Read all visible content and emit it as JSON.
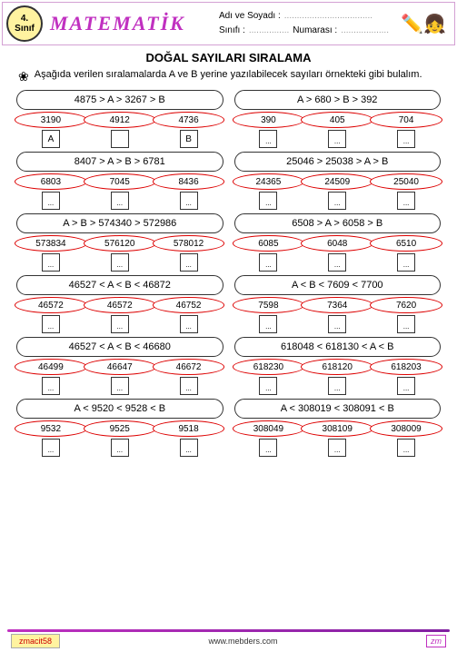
{
  "header": {
    "grade_num": "4.",
    "grade_label": "Sınıf",
    "subject": "MATEMATİK",
    "name_label": "Adı ve Soyadı :",
    "class_label": "Sınıfı :",
    "number_label": "Numarası :",
    "dots": "...................................",
    "dots2": "................",
    "dots3": "..................."
  },
  "title": "DOĞAL SAYILARI SIRALAMA",
  "instruction": "Aşağıda verilen sıralamalarda A ve B yerine yazılabilecek sayıları örnekteki gibi bulalım.",
  "problems": [
    {
      "ineq": "4875 > A  > 3267 > B",
      "opts": [
        "3190",
        "4912",
        "4736"
      ],
      "boxes": [
        "A",
        "",
        "B"
      ]
    },
    {
      "ineq": "A > 680  > B > 392",
      "opts": [
        "390",
        "405",
        "704"
      ],
      "boxes": [
        "...",
        "...",
        "..."
      ]
    },
    {
      "ineq": "8407 > A  > B > 6781",
      "opts": [
        "6803",
        "7045",
        "8436"
      ],
      "boxes": [
        "...",
        "...",
        "..."
      ]
    },
    {
      "ineq": "25046 > 25038  > A > B",
      "opts": [
        "24365",
        "24509",
        "25040"
      ],
      "boxes": [
        "...",
        "...",
        "..."
      ]
    },
    {
      "ineq": "A > B  > 574340 > 572986",
      "opts": [
        "573834",
        "576120",
        "578012"
      ],
      "boxes": [
        "...",
        "...",
        "..."
      ]
    },
    {
      "ineq": "6508 > A  > 6058 > B",
      "opts": [
        "6085",
        "6048",
        "6510"
      ],
      "boxes": [
        "...",
        "...",
        "..."
      ]
    },
    {
      "ineq": "46527 < A  < B < 46872",
      "opts": [
        "46572",
        "46572",
        "46752"
      ],
      "boxes": [
        "...",
        "...",
        "..."
      ]
    },
    {
      "ineq": "A < B  < 7609 < 7700",
      "opts": [
        "7598",
        "7364",
        "7620"
      ],
      "boxes": [
        "...",
        "...",
        "..."
      ]
    },
    {
      "ineq": "46527 < A  < B < 46680",
      "opts": [
        "46499",
        "46647",
        "46672"
      ],
      "boxes": [
        "...",
        "...",
        "..."
      ]
    },
    {
      "ineq": "618048 < 618130  < A < B",
      "opts": [
        "618230",
        "618120",
        "618203"
      ],
      "boxes": [
        "...",
        "...",
        "..."
      ]
    },
    {
      "ineq": "A < 9520  < 9528 < B",
      "opts": [
        "9532",
        "9525",
        "9518"
      ],
      "boxes": [
        "...",
        "...",
        "..."
      ]
    },
    {
      "ineq": "A < 308019  < 308091 < B",
      "opts": [
        "308049",
        "308109",
        "308009"
      ],
      "boxes": [
        "...",
        "...",
        "..."
      ]
    }
  ],
  "footer": {
    "left": "zmacit58",
    "center": "www.mebders.com",
    "right": "zm"
  },
  "colors": {
    "purple": "#c030c0",
    "yellow": "#fff3a0",
    "red": "#d00"
  }
}
